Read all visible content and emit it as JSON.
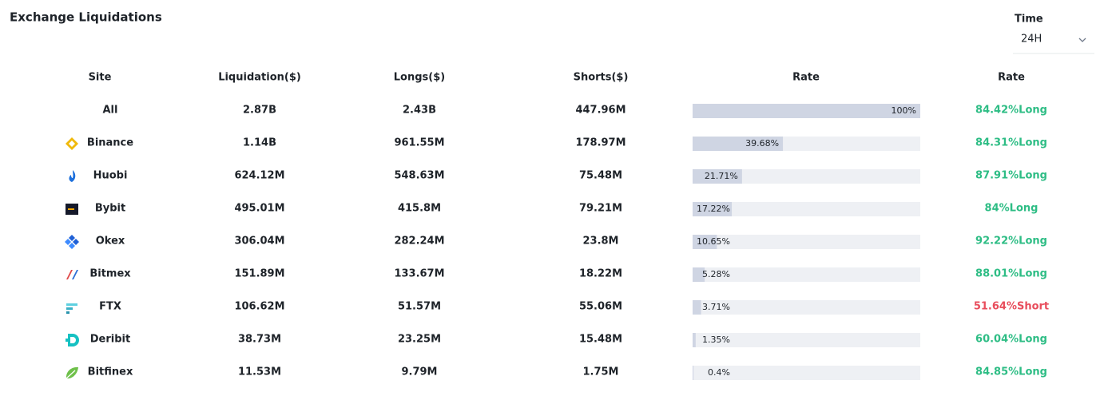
{
  "header": {
    "title": "Exchange Liquidations",
    "time_label": "Time",
    "time_value": "24H"
  },
  "table": {
    "columns": [
      "Site",
      "Liquidation($)",
      "Longs($)",
      "Shorts($)",
      "Rate",
      "Rate"
    ],
    "bar_color": "#cfd5e3",
    "track_color": "#eef0f4",
    "rows": [
      {
        "site": "All",
        "liquidation": "2.87B",
        "longs": "2.43B",
        "shorts": "447.96M",
        "rate": {
          "value": 100,
          "label": "100%"
        },
        "ratio": {
          "text": "84.42%Long",
          "color": "#2ebd85"
        }
      },
      {
        "site": "Binance",
        "liquidation": "1.14B",
        "longs": "961.55M",
        "shorts": "178.97M",
        "rate": {
          "value": 39.68,
          "label": "39.68%"
        },
        "ratio": {
          "text": "84.31%Long",
          "color": "#2ebd85"
        }
      },
      {
        "site": "Huobi",
        "liquidation": "624.12M",
        "longs": "548.63M",
        "shorts": "75.48M",
        "rate": {
          "value": 21.71,
          "label": "21.71%"
        },
        "ratio": {
          "text": "87.91%Long",
          "color": "#2ebd85"
        }
      },
      {
        "site": "Bybit",
        "liquidation": "495.01M",
        "longs": "415.8M",
        "shorts": "79.21M",
        "rate": {
          "value": 17.22,
          "label": "17.22%"
        },
        "ratio": {
          "text": "84%Long",
          "color": "#2ebd85"
        }
      },
      {
        "site": "Okex",
        "liquidation": "306.04M",
        "longs": "282.24M",
        "shorts": "23.8M",
        "rate": {
          "value": 10.65,
          "label": "10.65%"
        },
        "ratio": {
          "text": "92.22%Long",
          "color": "#2ebd85"
        }
      },
      {
        "site": "Bitmex",
        "liquidation": "151.89M",
        "longs": "133.67M",
        "shorts": "18.22M",
        "rate": {
          "value": 5.28,
          "label": "5.28%"
        },
        "ratio": {
          "text": "88.01%Long",
          "color": "#2ebd85"
        }
      },
      {
        "site": "FTX",
        "liquidation": "106.62M",
        "longs": "51.57M",
        "shorts": "55.06M",
        "rate": {
          "value": 3.71,
          "label": "3.71%"
        },
        "ratio": {
          "text": "51.64%Short",
          "color": "#e84d5c"
        }
      },
      {
        "site": "Deribit",
        "liquidation": "38.73M",
        "longs": "23.25M",
        "shorts": "15.48M",
        "rate": {
          "value": 1.35,
          "label": "1.35%"
        },
        "ratio": {
          "text": "60.04%Long",
          "color": "#2ebd85"
        }
      },
      {
        "site": "Bitfinex",
        "liquidation": "11.53M",
        "longs": "9.79M",
        "shorts": "1.75M",
        "rate": {
          "value": 0.4,
          "label": "0.4%"
        },
        "ratio": {
          "text": "84.85%Long",
          "color": "#2ebd85"
        }
      }
    ]
  }
}
